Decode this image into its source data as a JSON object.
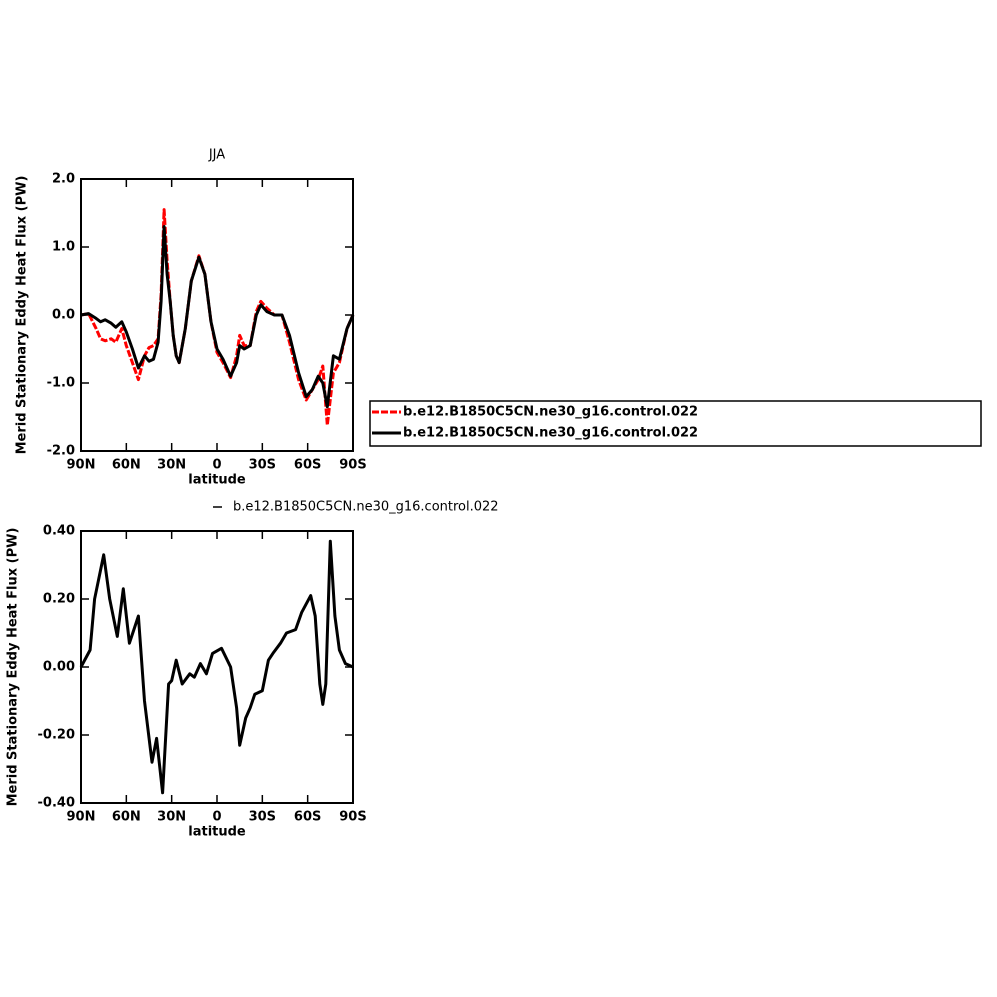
{
  "chart_data": [
    {
      "type": "line",
      "title": "JJA",
      "xlabel": "latitude",
      "ylabel": "Merid Stationary Eddy Heat Flux (PW)",
      "x": [
        90,
        85,
        80,
        77,
        74,
        70,
        67,
        63,
        60,
        56,
        52,
        48,
        45,
        42,
        39,
        37,
        35,
        33,
        31,
        29,
        27,
        25,
        21,
        17,
        12,
        8,
        4,
        0,
        -4,
        -9,
        -13,
        -15,
        -18,
        -22,
        -26,
        -29,
        -33,
        -38,
        -43,
        -48,
        -54,
        -59,
        -63,
        -67,
        -70,
        -73,
        -77,
        -81,
        -86,
        -90
      ],
      "series": [
        {
          "name": "b.e12.B1850C5CN.ne30_g16.control.022",
          "color": "#ff0000",
          "dashed": true,
          "values": [
            0,
            0.02,
            -0.2,
            -0.35,
            -0.38,
            -0.35,
            -0.4,
            -0.2,
            -0.45,
            -0.7,
            -0.95,
            -0.6,
            -0.48,
            -0.45,
            -0.35,
            0.3,
            1.55,
            0.8,
            0.2,
            -0.3,
            -0.6,
            -0.7,
            -0.2,
            0.5,
            0.87,
            0.6,
            -0.1,
            -0.55,
            -0.7,
            -0.92,
            -0.6,
            -0.3,
            -0.45,
            -0.45,
            0.05,
            0.2,
            0.1,
            0,
            0,
            -0.4,
            -0.95,
            -1.25,
            -1.1,
            -0.95,
            -0.75,
            -1.62,
            -0.85,
            -0.7,
            -0.2,
            0
          ]
        },
        {
          "name": "b.e12.B1850C5CN.ne30_g16.control.022",
          "color": "#000000",
          "dashed": false,
          "values": [
            0,
            0.02,
            -0.05,
            -0.1,
            -0.07,
            -0.12,
            -0.18,
            -0.1,
            -0.25,
            -0.5,
            -0.78,
            -0.6,
            -0.68,
            -0.65,
            -0.4,
            0.2,
            1.3,
            0.6,
            0.2,
            -0.3,
            -0.6,
            -0.7,
            -0.2,
            0.5,
            0.85,
            0.6,
            -0.1,
            -0.5,
            -0.65,
            -0.9,
            -0.7,
            -0.45,
            -0.5,
            -0.45,
            0,
            0.15,
            0.05,
            0,
            0,
            -0.3,
            -0.85,
            -1.2,
            -1.1,
            -0.9,
            -1.0,
            -1.35,
            -0.6,
            -0.65,
            -0.2,
            0
          ]
        }
      ],
      "xlim": [
        90,
        -90
      ],
      "ylim": [
        -2,
        2
      ],
      "xticks": [
        {
          "value": 90,
          "label": "90N"
        },
        {
          "value": 60,
          "label": "60N"
        },
        {
          "value": 30,
          "label": "30N"
        },
        0,
        {
          "value": -30,
          "label": "30S"
        },
        {
          "value": -60,
          "label": "60S"
        },
        {
          "value": -90,
          "label": "90S"
        }
      ],
      "yticks": [
        {
          "value": 2,
          "label": "2.0"
        },
        {
          "value": 1,
          "label": "1.0"
        },
        {
          "value": 0,
          "label": "0.0"
        },
        {
          "value": -1,
          "label": "-1.0"
        },
        {
          "value": -2,
          "label": "-2.0"
        }
      ],
      "legend": "right"
    },
    {
      "type": "line",
      "xlabel": "latitude",
      "ylabel": "Merid Stationary Eddy Heat Flux (PW)",
      "x": [
        90,
        84,
        81,
        75,
        71,
        66,
        62,
        58,
        52,
        48,
        43,
        40,
        36,
        32,
        30,
        27,
        23,
        18,
        15,
        11,
        7,
        3,
        -3,
        -9,
        -13,
        -15,
        -19,
        -22,
        -25,
        -30,
        -34,
        -37,
        -42,
        -46,
        -52,
        -56,
        -62,
        -65,
        -68,
        -70,
        -72,
        -75,
        -78,
        -81,
        -85,
        -90
      ],
      "series": [
        {
          "name": "b.e12.B1850C5CN.ne30_g16.control.022",
          "color": "#000000",
          "dashed": false,
          "values": [
            0,
            0.05,
            0.2,
            0.33,
            0.2,
            0.09,
            0.23,
            0.07,
            0.15,
            -0.1,
            -0.28,
            -0.21,
            -0.37,
            -0.05,
            -0.04,
            0.02,
            -0.05,
            -0.02,
            -0.03,
            0.01,
            -0.02,
            0.04,
            0.055,
            0,
            -0.12,
            -0.23,
            -0.15,
            -0.12,
            -0.08,
            -0.07,
            0.02,
            0.04,
            0.07,
            0.1,
            0.11,
            0.16,
            0.21,
            0.15,
            -0.05,
            -0.11,
            -0.05,
            0.37,
            0.15,
            0.05,
            0.01,
            0
          ]
        }
      ],
      "xlim": [
        90,
        -90
      ],
      "ylim": [
        -0.4,
        0.4
      ],
      "xticks": [
        {
          "value": 90,
          "label": "90N"
        },
        {
          "value": 60,
          "label": "60N"
        },
        {
          "value": 30,
          "label": "30N"
        },
        0,
        {
          "value": -30,
          "label": "30S"
        },
        {
          "value": -60,
          "label": "60S"
        },
        {
          "value": -90,
          "label": "90S"
        }
      ],
      "yticks": [
        {
          "value": 0.4,
          "label": "0.40"
        },
        {
          "value": 0.2,
          "label": "0.20"
        },
        {
          "value": 0,
          "label": "0.00"
        },
        {
          "value": -0.2,
          "label": "-0.20"
        },
        {
          "value": -0.4,
          "label": "-0.40"
        }
      ],
      "legend": "top"
    }
  ]
}
